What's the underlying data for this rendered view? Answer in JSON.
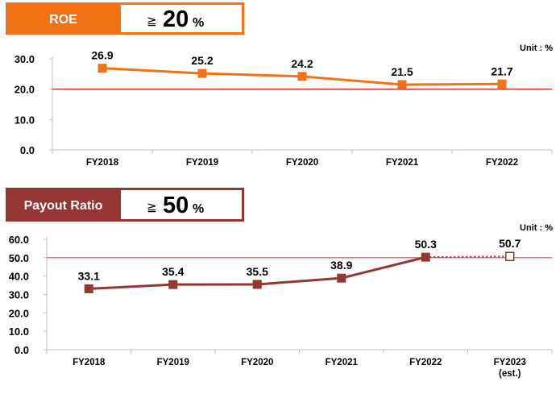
{
  "chart_data": [
    {
      "type": "line",
      "header_label": "ROE",
      "target_sign": "≧",
      "target_value": "20",
      "target_unit": "%",
      "unit_note": "Unit : %",
      "categories": [
        "FY2018",
        "FY2019",
        "FY2020",
        "FY2021",
        "FY2022"
      ],
      "category_sublabels": [
        "",
        "",
        "",
        "",
        ""
      ],
      "values": [
        26.9,
        25.2,
        24.2,
        21.5,
        21.7
      ],
      "value_labels": [
        "26.9",
        "25.2",
        "24.2",
        "21.5",
        "21.7"
      ],
      "estimated": [
        false,
        false,
        false,
        false,
        false
      ],
      "ylim": [
        0,
        30
      ],
      "yticks": [
        0,
        10,
        20,
        30
      ],
      "ytick_labels": [
        "0.0",
        "10.0",
        "20.0",
        "30.0"
      ],
      "target_line": 20,
      "colors": {
        "header": "#F47216",
        "series": "#F47216",
        "target_line": "#C00000"
      }
    },
    {
      "type": "line",
      "header_label": "Payout Ratio",
      "target_sign": "≧",
      "target_value": "50",
      "target_unit": "%",
      "unit_note": "Unit : %",
      "categories": [
        "FY2018",
        "FY2019",
        "FY2020",
        "FY2021",
        "FY2022",
        "FY2023"
      ],
      "category_sublabels": [
        "",
        "",
        "",
        "",
        "",
        "(est.)"
      ],
      "values": [
        33.1,
        35.4,
        35.5,
        38.9,
        50.3,
        50.7
      ],
      "value_labels": [
        "33.1",
        "35.4",
        "35.5",
        "38.9",
        "50.3",
        "50.7"
      ],
      "estimated": [
        false,
        false,
        false,
        false,
        false,
        true
      ],
      "ylim": [
        0,
        60
      ],
      "yticks": [
        0,
        10,
        20,
        30,
        40,
        50,
        60
      ],
      "ytick_labels": [
        "0.0",
        "10.0",
        "20.0",
        "30.0",
        "40.0",
        "50.0",
        "60.0"
      ],
      "target_line": 50,
      "colors": {
        "header": "#943634",
        "series": "#943634",
        "target_line": "#E8424A"
      }
    }
  ]
}
